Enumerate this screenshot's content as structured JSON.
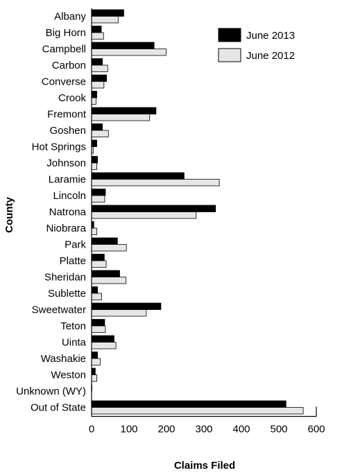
{
  "chart_data": {
    "type": "bar",
    "orientation": "horizontal",
    "categories": [
      "Albany",
      "Big Horn",
      "Campbell",
      "Carbon",
      "Converse",
      "Crook",
      "Fremont",
      "Goshen",
      "Hot Springs",
      "Johnson",
      "Laramie",
      "Lincoln",
      "Natrona",
      "Niobrara",
      "Park",
      "Platte",
      "Sheridan",
      "Sublette",
      "Sweetwater",
      "Teton",
      "Uinta",
      "Washakie",
      "Weston",
      "Unknown (WY)",
      "Out of State"
    ],
    "series": [
      {
        "name": "June 2013",
        "color": "#000000",
        "values": [
          86,
          26,
          167,
          29,
          40,
          14,
          172,
          29,
          14,
          16,
          247,
          37,
          331,
          6,
          69,
          34,
          75,
          16,
          185,
          35,
          60,
          16,
          10,
          1,
          519
        ]
      },
      {
        "name": "June 2012",
        "color": "#e6e6e6",
        "values": [
          71,
          32,
          199,
          43,
          33,
          12,
          155,
          45,
          5,
          14,
          341,
          35,
          279,
          14,
          93,
          39,
          92,
          27,
          146,
          37,
          65,
          23,
          14,
          0,
          565
        ]
      }
    ],
    "xlabel": "Claims Filed",
    "ylabel": "County",
    "xlim": [
      0,
      600
    ],
    "xticks": [
      0,
      100,
      200,
      300,
      400,
      500,
      600
    ],
    "grid": false,
    "legend": {
      "position": "top-right",
      "entries": [
        "June 2013",
        "June 2012"
      ]
    }
  }
}
